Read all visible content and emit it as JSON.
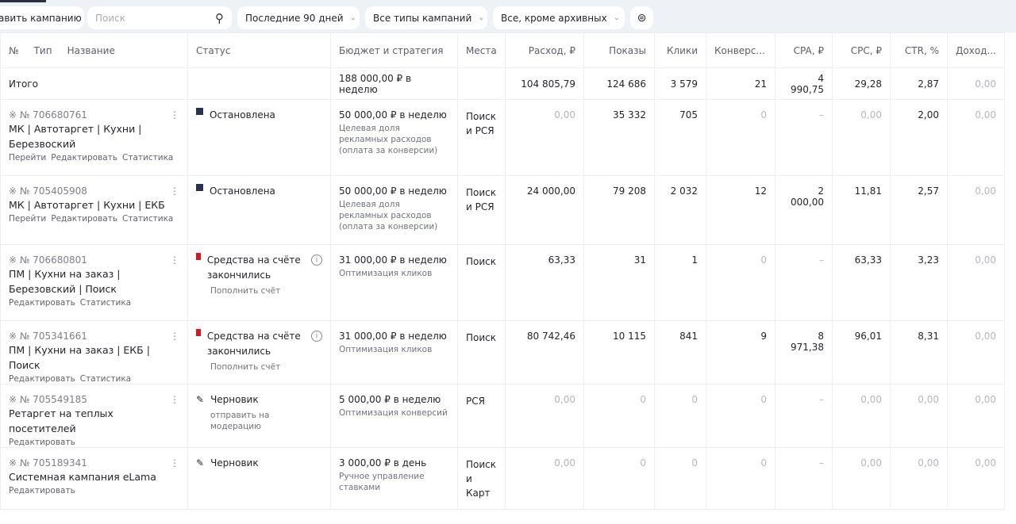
{
  "toolbar": {
    "add_campaign": "авить кампанию",
    "search_placeholder": "Поиск",
    "period": "Последние 90 дней",
    "types": "Все типы кампаний",
    "archive": "Все, кроме архивных"
  },
  "columns": [
    "№",
    "Тип",
    "Название",
    "Статус",
    "Бюджет и стратегия",
    "Места",
    "Расход, ₽",
    "Показы",
    "Клики",
    "Конверс...",
    "CPA, ₽",
    "CPC, ₽",
    "CTR, %",
    "Доход..."
  ],
  "total": {
    "label": "Итого",
    "budget": "188 000,00 ₽ в неделю",
    "spend": "104 805,79",
    "shows": "124 686",
    "clicks": "3 579",
    "conv": "21",
    "cpa": "4 990,75",
    "cpc": "29,28",
    "ctr": "2,87",
    "income": "0,00"
  },
  "rows": [
    {
      "id": "№ 706680761",
      "name": "МК | Автотаргет | Кухни | Березвоский",
      "links": [
        "Перейти",
        "Редактировать",
        "Статистика"
      ],
      "status": "Остановлена",
      "status_sub": "",
      "budget": "50 000,00 ₽ в неделю",
      "strategy": "Целевая доля рекламных расходов (оплата за конверсии)",
      "places": "Поиск и РСЯ",
      "spend": "0,00",
      "shows": "35 332",
      "clicks": "705",
      "conv": "0",
      "cpa": "–",
      "cpc": "0,00",
      "ctr": "2,00",
      "income": "0,00"
    },
    {
      "id": "№ 705405908",
      "name": "МК | Автотаргет | Кухни | ЕКБ",
      "links": [
        "Перейти",
        "Редактировать",
        "Статистика"
      ],
      "status": "Остановлена",
      "status_sub": "",
      "budget": "50 000,00 ₽ в неделю",
      "strategy": "Целевая доля рекламных расходов (оплата за конверсии)",
      "places": "Поиск и РСЯ",
      "spend": "24 000,00",
      "shows": "79 208",
      "clicks": "2 032",
      "conv": "12",
      "cpa": "2 000,00",
      "cpc": "11,81",
      "ctr": "2,57",
      "income": "0,00"
    },
    {
      "id": "№ 706680801",
      "name": "ПМ | Кухни на заказ | Березовский | Поиск",
      "links": [
        "Редактировать",
        "Статистика"
      ],
      "status": "Средства на счёте закончились",
      "status_sub": "Пополнить счёт",
      "budget": "31 000,00 ₽ в неделю",
      "strategy": "Оптимизация кликов",
      "places": "Поиск",
      "spend": "63,33",
      "shows": "31",
      "clicks": "1",
      "conv": "0",
      "cpa": "–",
      "cpc": "63,33",
      "ctr": "3,23",
      "income": "0,00"
    },
    {
      "id": "№ 705341661",
      "name": "ПМ | Кухни на заказ | ЕКБ | Поиск",
      "links": [
        "Редактировать",
        "Статистика"
      ],
      "status": "Средства на счёте закончились",
      "status_sub": "Пополнить счёт",
      "budget": "31 000,00 ₽ в неделю",
      "strategy": "Оптимизация кликов",
      "places": "Поиск",
      "spend": "80 742,46",
      "shows": "10 115",
      "clicks": "841",
      "conv": "9",
      "cpa": "8 971,38",
      "cpc": "96,01",
      "ctr": "8,31",
      "income": "0,00"
    },
    {
      "id": "№ 705549185",
      "name": "Ретаргет на теплых посетителей",
      "links": [
        "Редактировать"
      ],
      "status": "Черновик",
      "status_sub": "отправить на модерацию",
      "budget": "5 000,00 ₽ в неделю",
      "strategy": "Оптимизация конверсий",
      "places": "РСЯ",
      "spend": "0,00",
      "shows": "0",
      "clicks": "0",
      "conv": "0",
      "cpa": "–",
      "cpc": "0,00",
      "ctr": "0,00",
      "income": "0,00"
    },
    {
      "id": "№ 705189341",
      "name": "Системная кампания eLama",
      "links": [
        "Редактировать"
      ],
      "status": "Черновик",
      "status_sub": "",
      "budget": "3 000,00 ₽ в день",
      "strategy": "Ручное управление ставками",
      "places": "Поиск и Карт",
      "spend": "0,00",
      "shows": "0",
      "clicks": "0",
      "conv": "0",
      "cpa": "–",
      "cpc": "0,00",
      "ctr": "0,00",
      "income": "0,00"
    }
  ],
  "colors": {
    "stopped": "#2b3150",
    "no_funds": "#e0141e",
    "muted": "#b3b6bd"
  }
}
